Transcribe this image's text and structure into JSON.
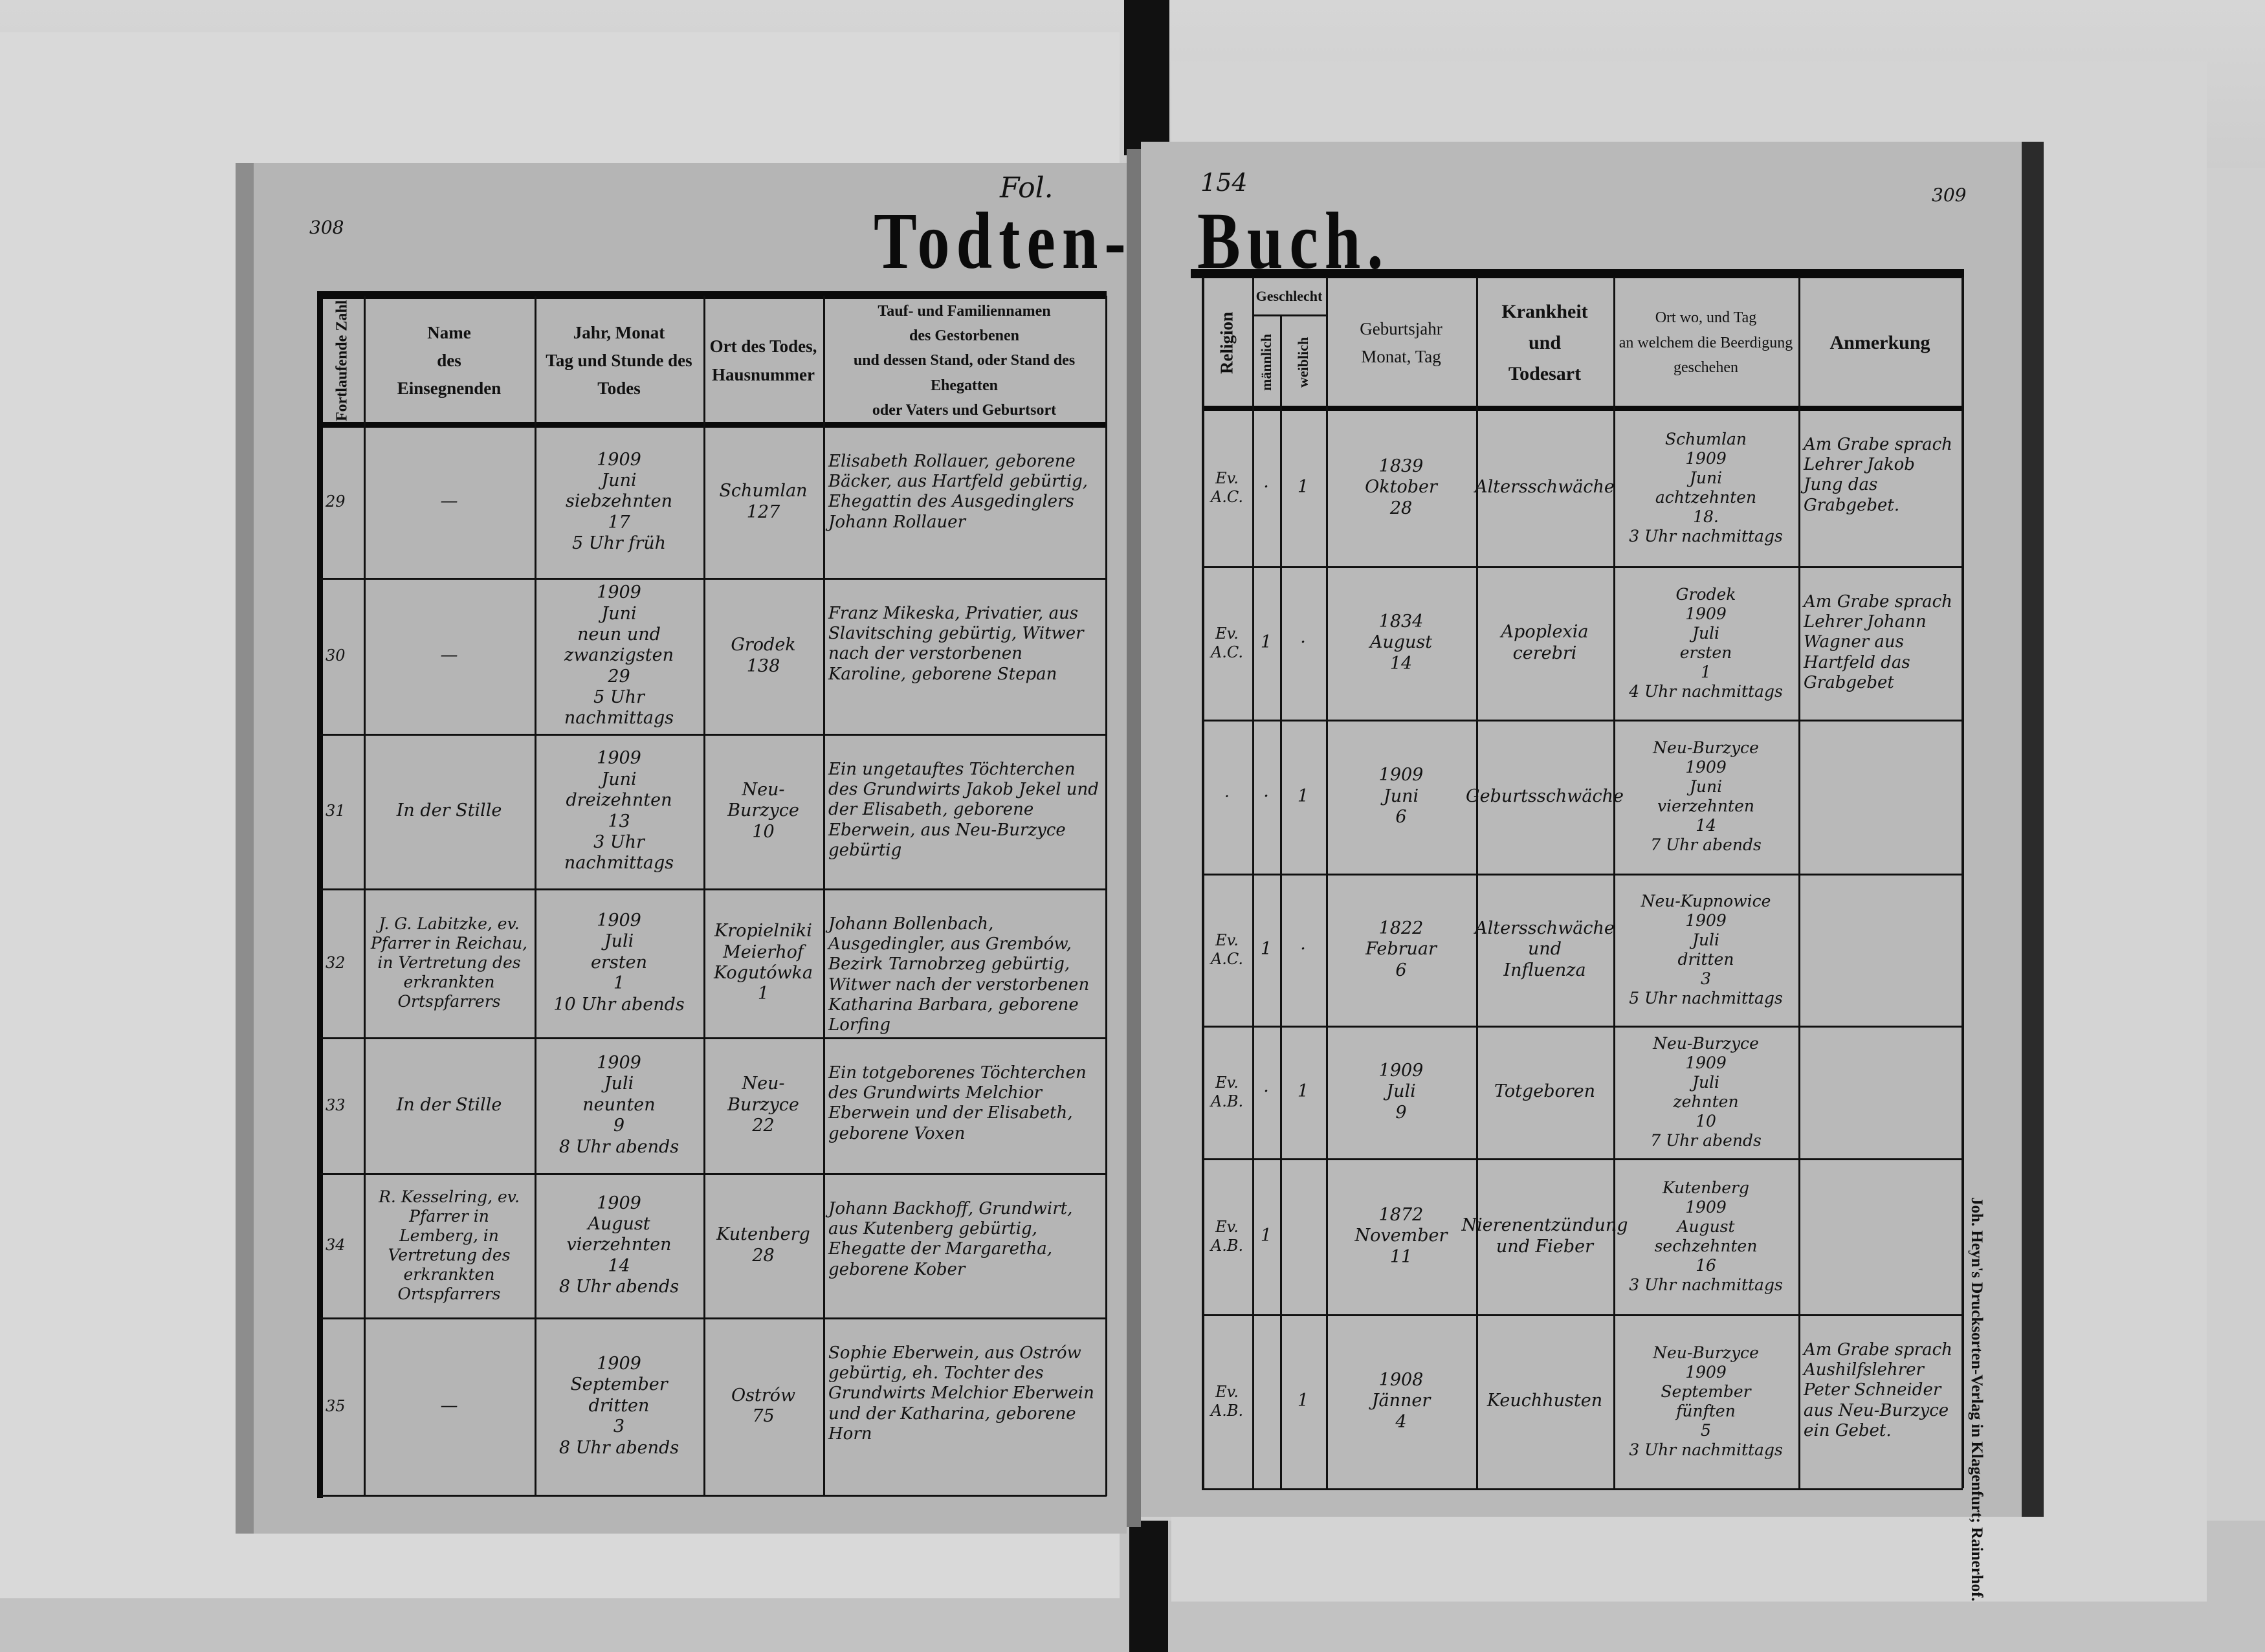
{
  "title": {
    "left": "Todten-",
    "right": "Buch."
  },
  "annotations": {
    "fol": "Fol.",
    "folio_number": "154",
    "page_left": "308",
    "page_right": "309"
  },
  "printer": "Joh. Heyn's Drucksorten-Verlag in Klagenfurt; Rainerhof.",
  "left_page": {
    "headers": [
      "Fortlaufende Zahl",
      "Name\ndes\nEinsegnenden",
      "Jahr, Monat\nTag und Stunde des\nTodes",
      "Ort des Todes,\nHausnummer",
      "Tauf- und Familiennamen\ndes Gestorbenen\nund dessen Stand, oder Stand des Ehegatten\noder Vaters und Geburtsort"
    ],
    "rows": [
      {
        "no": "29",
        "officiant": "—",
        "date": "1909\nJuni\nsiebzehnten\n17\n5 Uhr früh",
        "place": "Schumlan\n127",
        "deceased": "Elisabeth Rollauer, geborene Bäcker, aus Hartfeld gebürtig, Ehegattin des Ausgedinglers Johann Rollauer"
      },
      {
        "no": "30",
        "officiant": "—",
        "date": "1909\nJuni\nneun und zwanzigsten\n29\n5 Uhr nachmittags",
        "place": "Grodek\n138",
        "deceased": "Franz Mikeska, Privatier, aus Slavitsching gebürtig, Witwer nach der verstorbenen Karoline, geborene Stepan"
      },
      {
        "no": "31",
        "officiant": "In der Stille",
        "date": "1909\nJuni\ndreizehnten\n13\n3 Uhr nachmittags",
        "place": "Neu-Burzyce\n10",
        "deceased": "Ein ungetauftes Töchterchen des Grundwirts Jakob Jekel und der Elisabeth, geborene Eberwein, aus Neu-Burzyce gebürtig"
      },
      {
        "no": "32",
        "officiant": "J. G. Labitzke, ev. Pfarrer in Reichau, in Vertretung des erkrankten Ortspfarrers",
        "date": "1909\nJuli\nersten\n1\n10 Uhr abends",
        "place": "Kropielniki\nMeierhof\nKogutówka\n1",
        "deceased": "Johann Bollenbach, Ausgedingler, aus Grembów, Bezirk Tarnobrzeg gebürtig, Witwer nach der verstorbenen Katharina Barbara, geborene Lorfing"
      },
      {
        "no": "33",
        "officiant": "In der Stille",
        "date": "1909\nJuli\nneunten\n9\n8 Uhr abends",
        "place": "Neu-Burzyce\n22",
        "deceased": "Ein totgeborenes Töchterchen des Grundwirts Melchior Eberwein und der Elisabeth, geborene Voxen"
      },
      {
        "no": "34",
        "officiant": "R. Kesselring, ev. Pfarrer in Lemberg, in Vertretung des erkrankten Ortspfarrers",
        "date": "1909\nAugust\nvierzehnten\n14\n8 Uhr abends",
        "place": "Kutenberg\n28",
        "deceased": "Johann Backhoff, Grundwirt, aus Kutenberg gebürtig, Ehegatte der Margaretha, geborene Kober"
      },
      {
        "no": "35",
        "officiant": "—",
        "date": "1909\nSeptember\ndritten\n3\n8 Uhr abends",
        "place": "Ostrów\n75",
        "deceased": "Sophie Eberwein, aus Ostrów gebürtig, eh. Tochter des Grundwirts Melchior Eberwein und der Katharina, geborene Horn"
      }
    ]
  },
  "right_page": {
    "headers": {
      "religion": "Religion",
      "sex": "Geschlecht",
      "male": "männlich",
      "female": "weiblich",
      "birth": "Geburtsjahr\nMonat, Tag",
      "cause": "Krankheit\nund\nTodesart",
      "burial": "Ort wo, und Tag\nan welchem die Beerdigung\ngeschehen",
      "remark": "Anmerkung"
    },
    "rows": [
      {
        "religion": "Ev.\nA.C.",
        "male": "·",
        "female": "1",
        "birth": "1839\nOktober\n28",
        "cause": "Altersschwäche",
        "burial": "Schumlan\n1909\nJuni\nachtzehnten\n18.\n3 Uhr nachmittags",
        "remark": "Am Grabe sprach Lehrer Jakob Jung das Grabgebet."
      },
      {
        "religion": "Ev.\nA.C.",
        "male": "1",
        "female": "·",
        "birth": "1834\nAugust\n14",
        "cause": "Apoplexia cerebri",
        "burial": "Grodek\n1909\nJuli\nersten\n1\n4 Uhr nachmittags",
        "remark": "Am Grabe sprach Lehrer Johann Wagner aus Hartfeld das Grabgebet"
      },
      {
        "religion": "·",
        "male": "·",
        "female": "1",
        "birth": "1909\nJuni\n6",
        "cause": "Geburtsschwäche",
        "burial": "Neu-Burzyce\n1909\nJuni\nvierzehnten\n14\n7 Uhr abends",
        "remark": ""
      },
      {
        "religion": "Ev.\nA.C.",
        "male": "1",
        "female": "·",
        "birth": "1822\nFebruar\n6",
        "cause": "Altersschwäche\nund\nInfluenza",
        "burial": "Neu-Kupnowice\n1909\nJuli\ndritten\n3\n5 Uhr nachmittags",
        "remark": ""
      },
      {
        "religion": "Ev.\nA.B.",
        "male": "·",
        "female": "1",
        "birth": "1909\nJuli\n9",
        "cause": "Totgeboren",
        "burial": "Neu-Burzyce\n1909\nJuli\nzehnten\n10\n7 Uhr abends",
        "remark": ""
      },
      {
        "religion": "Ev.\nA.B.",
        "male": "1",
        "female": "",
        "birth": "1872\nNovember\n11",
        "cause": "Nierenentzündung\nund Fieber",
        "burial": "Kutenberg\n1909\nAugust\nsechzehnten\n16\n3 Uhr nachmittags",
        "remark": ""
      },
      {
        "religion": "Ev.\nA.B.",
        "male": "",
        "female": "1",
        "birth": "1908\nJänner\n4",
        "cause": "Keuchhusten",
        "burial": "Neu-Burzyce\n1909\nSeptember\nfünften\n5\n3 Uhr nachmittags",
        "remark": "Am Grabe sprach Aushilfslehrer Peter Schneider aus Neu-Burzyce ein Gebet."
      }
    ]
  }
}
